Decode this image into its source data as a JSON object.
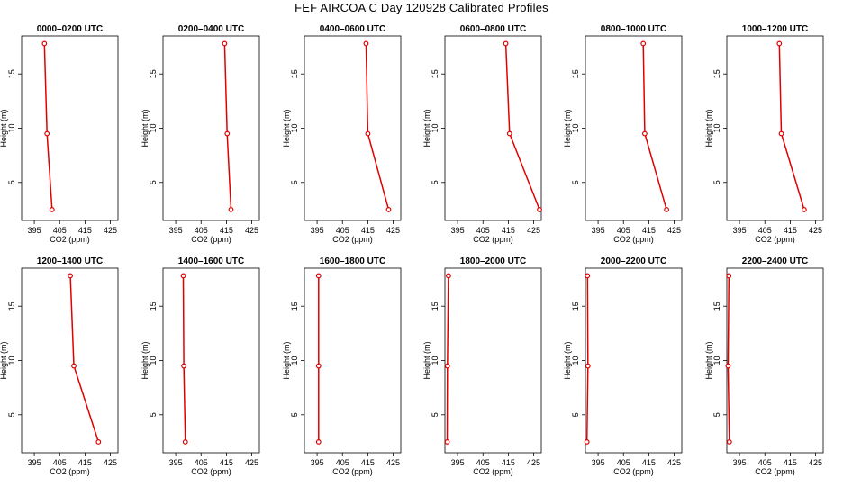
{
  "title": "FEF AIRCOA C  Day 120928  Calibrated Profiles",
  "colors": {
    "series": "#e00000",
    "frame": "#000000"
  },
  "chart_data": [
    {
      "type": "line",
      "title": "0000–0200 UTC",
      "xlabel": "CO2 (ppm)",
      "ylabel": "Height (m)",
      "xlim": [
        390,
        428
      ],
      "ylim": [
        1.5,
        18.5
      ],
      "xticks": [
        395,
        405,
        415,
        425
      ],
      "yticks": [
        5,
        10,
        15
      ],
      "x": [
        399,
        400,
        402
      ],
      "y": [
        17.8,
        9.5,
        2.5
      ]
    },
    {
      "type": "line",
      "title": "0200–0400 UTC",
      "xlabel": "CO2 (ppm)",
      "ylabel": "Height (m)",
      "xlim": [
        390,
        428
      ],
      "ylim": [
        1.5,
        18.5
      ],
      "xticks": [
        395,
        405,
        415,
        425
      ],
      "yticks": [
        5,
        10,
        15
      ],
      "x": [
        414.3,
        415.3,
        416.8
      ],
      "y": [
        17.8,
        9.5,
        2.5
      ]
    },
    {
      "type": "line",
      "title": "0400–0600 UTC",
      "xlabel": "CO2 (ppm)",
      "ylabel": "Height (m)",
      "xlim": [
        390,
        428
      ],
      "ylim": [
        1.5,
        18.5
      ],
      "xticks": [
        395,
        405,
        415,
        425
      ],
      "yticks": [
        5,
        10,
        15
      ],
      "x": [
        414.3,
        415.0,
        423.2
      ],
      "y": [
        17.8,
        9.5,
        2.5
      ]
    },
    {
      "type": "line",
      "title": "0600–0800 UTC",
      "xlabel": "CO2 (ppm)",
      "ylabel": "Height (m)",
      "xlim": [
        390,
        428
      ],
      "ylim": [
        1.5,
        18.5
      ],
      "xticks": [
        395,
        405,
        415,
        425
      ],
      "yticks": [
        5,
        10,
        15
      ],
      "x": [
        414.0,
        415.5,
        427.3
      ],
      "y": [
        17.8,
        9.5,
        2.5
      ]
    },
    {
      "type": "line",
      "title": "0800–1000 UTC",
      "xlabel": "CO2 (ppm)",
      "ylabel": "Height (m)",
      "xlim": [
        390,
        428
      ],
      "ylim": [
        1.5,
        18.5
      ],
      "xticks": [
        395,
        405,
        415,
        425
      ],
      "yticks": [
        5,
        10,
        15
      ],
      "x": [
        412.8,
        413.4,
        422.0
      ],
      "y": [
        17.8,
        9.5,
        2.5
      ]
    },
    {
      "type": "line",
      "title": "1000–1200 UTC",
      "xlabel": "CO2 (ppm)",
      "ylabel": "Height (m)",
      "xlim": [
        390,
        428
      ],
      "ylim": [
        1.5,
        18.5
      ],
      "xticks": [
        395,
        405,
        415,
        425
      ],
      "yticks": [
        5,
        10,
        15
      ],
      "x": [
        410.7,
        411.5,
        420.5
      ],
      "y": [
        17.8,
        9.5,
        2.5
      ]
    },
    {
      "type": "line",
      "title": "1200–1400 UTC",
      "xlabel": "CO2 (ppm)",
      "ylabel": "Height (m)",
      "xlim": [
        390,
        428
      ],
      "ylim": [
        1.5,
        18.5
      ],
      "xticks": [
        395,
        405,
        415,
        425
      ],
      "yticks": [
        5,
        10,
        15
      ],
      "x": [
        409.2,
        410.6,
        420.3
      ],
      "y": [
        17.8,
        9.5,
        2.5
      ]
    },
    {
      "type": "line",
      "title": "1400–1600 UTC",
      "xlabel": "CO2 (ppm)",
      "ylabel": "Height (m)",
      "xlim": [
        390,
        428
      ],
      "ylim": [
        1.5,
        18.5
      ],
      "xticks": [
        395,
        405,
        415,
        425
      ],
      "yticks": [
        5,
        10,
        15
      ],
      "x": [
        398.0,
        398.2,
        398.8
      ],
      "y": [
        17.8,
        9.5,
        2.5
      ]
    },
    {
      "type": "line",
      "title": "1600–1800 UTC",
      "xlabel": "CO2 (ppm)",
      "ylabel": "Height (m)",
      "xlim": [
        390,
        428
      ],
      "ylim": [
        1.5,
        18.5
      ],
      "xticks": [
        395,
        405,
        415,
        425
      ],
      "yticks": [
        5,
        10,
        15
      ],
      "x": [
        395.6,
        395.6,
        395.6
      ],
      "y": [
        17.8,
        9.5,
        2.5
      ]
    },
    {
      "type": "line",
      "title": "1800–2000 UTC",
      "xlabel": "CO2 (ppm)",
      "ylabel": "Height (m)",
      "xlim": [
        390,
        428
      ],
      "ylim": [
        1.5,
        18.5
      ],
      "xticks": [
        395,
        405,
        415,
        425
      ],
      "yticks": [
        5,
        10,
        15
      ],
      "x": [
        391.4,
        391.0,
        390.9
      ],
      "y": [
        17.8,
        9.5,
        2.5
      ]
    },
    {
      "type": "line",
      "title": "2000–2200 UTC",
      "xlabel": "CO2 (ppm)",
      "ylabel": "Height (m)",
      "xlim": [
        390,
        428
      ],
      "ylim": [
        1.5,
        18.5
      ],
      "xticks": [
        395,
        405,
        415,
        425
      ],
      "yticks": [
        5,
        10,
        15
      ],
      "x": [
        390.8,
        391.0,
        390.6
      ],
      "y": [
        17.8,
        9.5,
        2.5
      ]
    },
    {
      "type": "line",
      "title": "2200–2400 UTC",
      "xlabel": "CO2 (ppm)",
      "ylabel": "Height (m)",
      "xlim": [
        390,
        428
      ],
      "ylim": [
        1.5,
        18.5
      ],
      "xticks": [
        395,
        405,
        415,
        425
      ],
      "yticks": [
        5,
        10,
        15
      ],
      "x": [
        390.8,
        390.5,
        391.0
      ],
      "y": [
        17.8,
        9.5,
        2.5
      ]
    }
  ]
}
